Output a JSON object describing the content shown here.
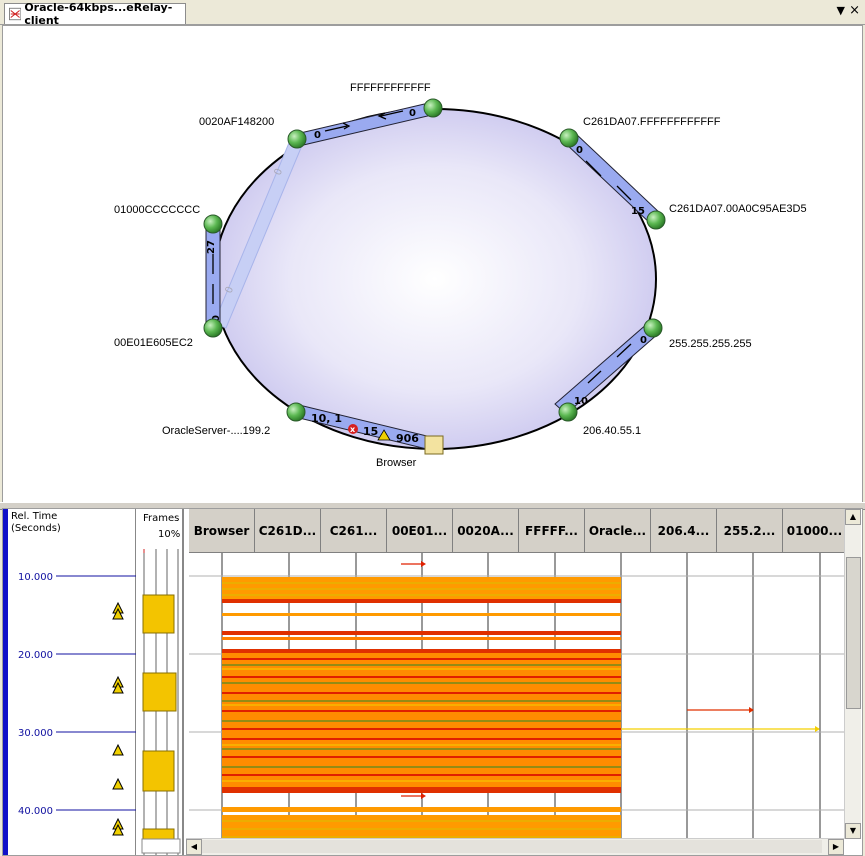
{
  "tab": {
    "title": "Oracle-64kbps...eRelay-client",
    "menu_icon": "down-triangle-icon",
    "close_icon": "close-icon"
  },
  "diagram": {
    "nodes": [
      {
        "id": "n1",
        "label": "FFFFFFFFFFFF"
      },
      {
        "id": "n2",
        "label": "0020AF148200"
      },
      {
        "id": "n3",
        "label": "C261DA07.FFFFFFFFFFFF"
      },
      {
        "id": "n4",
        "label": "C261DA07.00A0C95AE3D5"
      },
      {
        "id": "n5",
        "label": "01000CCCCCCC"
      },
      {
        "id": "n6",
        "label": "00E01E605EC2"
      },
      {
        "id": "n7",
        "label": "255.255.255.255"
      },
      {
        "id": "n8",
        "label": "206.40.55.1"
      },
      {
        "id": "n9",
        "label": "OracleServer-....199.2"
      },
      {
        "id": "n10",
        "label": "Browser"
      }
    ],
    "edges": [
      {
        "from": "n2",
        "to": "n1",
        "labels": [
          "0",
          "0"
        ]
      },
      {
        "from": "n3",
        "to": "n4",
        "labels": [
          "0",
          "15"
        ]
      },
      {
        "from": "n5",
        "to": "n6",
        "labels": [
          "27",
          "0"
        ]
      },
      {
        "from": "n2",
        "to": "n6",
        "labels": [
          "0",
          "0"
        ]
      },
      {
        "from": "n7",
        "to": "n8",
        "labels": [
          "0",
          "10"
        ]
      },
      {
        "from": "n9",
        "to": "n10",
        "labels": [
          "10, 1",
          "15",
          "906"
        ]
      }
    ]
  },
  "timeline": {
    "time_header": "Rel. Time\n(Seconds)",
    "time_labels": [
      "10.000",
      "20.000",
      "30.000",
      "40.000"
    ],
    "frames_header": "Frames",
    "frames_pct": "10%",
    "columns": [
      "Browser",
      "C261D...",
      "C261...",
      "00E01...",
      "0020A...",
      "FFFFF...",
      "Oracle...",
      "206.4...",
      "255.2...",
      "01000..."
    ]
  },
  "colors": {
    "accent": "#1010c8",
    "ellipse_fill": "#d8d4f0",
    "node_fill": "#4caf50",
    "traffic_orange": "#ff8c00",
    "traffic_red": "#e02000",
    "traffic_yellow": "#f5d000"
  }
}
